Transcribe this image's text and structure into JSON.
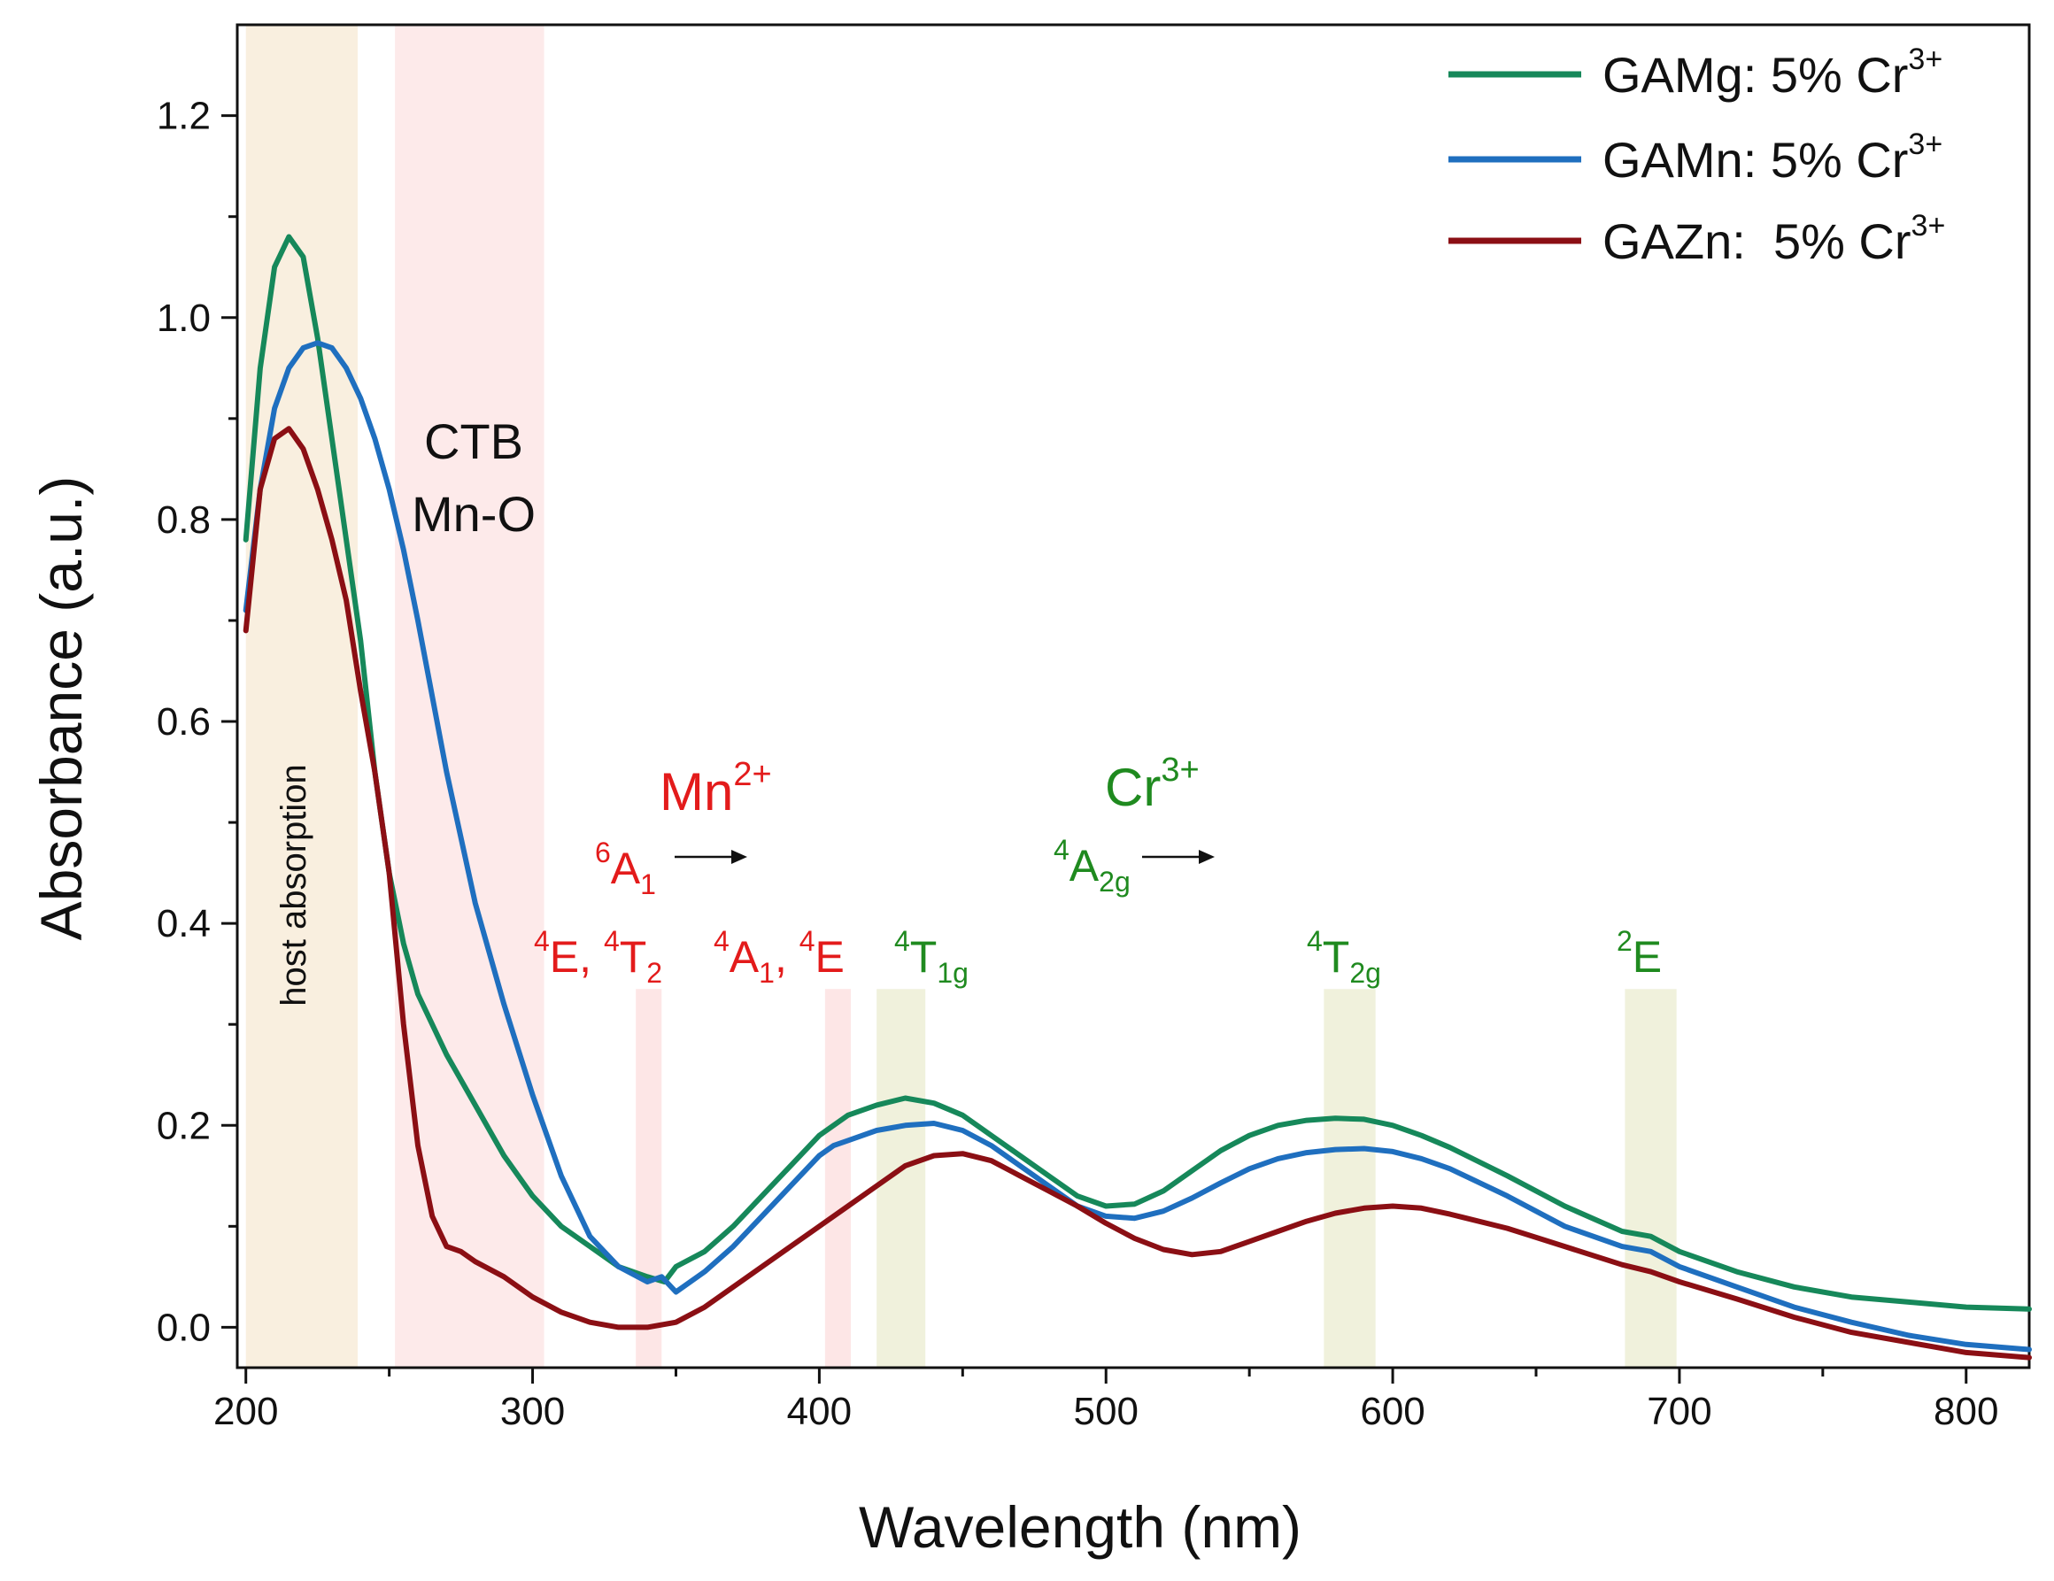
{
  "chart_data": {
    "type": "line",
    "title": "",
    "xlabel": "Wavelength (nm)",
    "ylabel": "Absorbance (a.u.)",
    "xlim": [
      197,
      822
    ],
    "ylim": [
      -0.04,
      1.29
    ],
    "x_ticks": [
      200,
      300,
      400,
      500,
      600,
      700,
      800
    ],
    "x_tick_labels": [
      "200",
      "300",
      "400",
      "500",
      "600",
      "700",
      "800"
    ],
    "y_ticks": [
      0.0,
      0.2,
      0.4,
      0.6,
      0.8,
      1.0,
      1.2
    ],
    "y_tick_labels": [
      "0.0",
      "0.2",
      "0.4",
      "0.6",
      "0.8",
      "1.0",
      "1.2"
    ],
    "legend_position": "top-right",
    "series": [
      {
        "name": "GAMg: 5% Cr",
        "name_sup": "3+",
        "color": "#16885a",
        "x": [
          200,
          205,
          210,
          215,
          220,
          225,
          230,
          235,
          240,
          245,
          250,
          255,
          260,
          270,
          280,
          290,
          300,
          310,
          320,
          330,
          340,
          346,
          350,
          360,
          370,
          380,
          390,
          400,
          410,
          420,
          430,
          440,
          450,
          460,
          470,
          480,
          490,
          500,
          510,
          520,
          530,
          540,
          550,
          560,
          570,
          580,
          590,
          600,
          610,
          620,
          640,
          660,
          680,
          690,
          700,
          720,
          740,
          760,
          780,
          800,
          822
        ],
        "y": [
          0.78,
          0.95,
          1.05,
          1.08,
          1.06,
          0.98,
          0.88,
          0.78,
          0.68,
          0.55,
          0.45,
          0.38,
          0.33,
          0.27,
          0.22,
          0.17,
          0.13,
          0.1,
          0.08,
          0.06,
          0.05,
          0.045,
          0.06,
          0.075,
          0.1,
          0.13,
          0.16,
          0.19,
          0.21,
          0.22,
          0.227,
          0.222,
          0.21,
          0.19,
          0.17,
          0.15,
          0.13,
          0.12,
          0.122,
          0.135,
          0.155,
          0.175,
          0.19,
          0.2,
          0.205,
          0.207,
          0.206,
          0.2,
          0.19,
          0.178,
          0.15,
          0.12,
          0.095,
          0.09,
          0.075,
          0.055,
          0.04,
          0.03,
          0.025,
          0.02,
          0.018
        ]
      },
      {
        "name": "GAMn: 5% Cr",
        "name_sup": "3+",
        "color": "#1f6fbf",
        "x": [
          200,
          205,
          210,
          215,
          220,
          225,
          230,
          235,
          240,
          245,
          250,
          255,
          260,
          270,
          280,
          290,
          300,
          310,
          320,
          330,
          340,
          345,
          350,
          360,
          370,
          380,
          390,
          400,
          405,
          410,
          420,
          430,
          440,
          450,
          460,
          470,
          480,
          490,
          500,
          510,
          520,
          530,
          540,
          550,
          560,
          570,
          580,
          590,
          600,
          610,
          620,
          640,
          660,
          680,
          690,
          700,
          720,
          740,
          760,
          780,
          800,
          822
        ],
        "y": [
          0.71,
          0.83,
          0.91,
          0.95,
          0.97,
          0.975,
          0.97,
          0.95,
          0.92,
          0.88,
          0.83,
          0.77,
          0.7,
          0.55,
          0.42,
          0.32,
          0.23,
          0.15,
          0.09,
          0.06,
          0.045,
          0.05,
          0.035,
          0.055,
          0.08,
          0.11,
          0.14,
          0.17,
          0.18,
          0.185,
          0.195,
          0.2,
          0.202,
          0.195,
          0.18,
          0.16,
          0.14,
          0.12,
          0.11,
          0.108,
          0.115,
          0.128,
          0.143,
          0.157,
          0.167,
          0.173,
          0.176,
          0.177,
          0.174,
          0.167,
          0.157,
          0.13,
          0.1,
          0.08,
          0.075,
          0.06,
          0.04,
          0.02,
          0.005,
          -0.008,
          -0.017,
          -0.022
        ]
      },
      {
        "name": "GAZn:  5% Cr",
        "name_sup": "3+",
        "color": "#8b0f14",
        "x": [
          200,
          205,
          210,
          215,
          220,
          225,
          230,
          235,
          240,
          245,
          250,
          255,
          260,
          265,
          270,
          275,
          280,
          290,
          300,
          310,
          320,
          330,
          340,
          350,
          360,
          370,
          380,
          390,
          400,
          410,
          420,
          430,
          440,
          450,
          460,
          470,
          480,
          490,
          500,
          510,
          520,
          530,
          540,
          550,
          560,
          570,
          580,
          590,
          600,
          610,
          620,
          640,
          660,
          680,
          690,
          700,
          720,
          740,
          760,
          780,
          800,
          822
        ],
        "y": [
          0.69,
          0.83,
          0.88,
          0.89,
          0.87,
          0.83,
          0.78,
          0.72,
          0.63,
          0.55,
          0.45,
          0.3,
          0.18,
          0.11,
          0.08,
          0.075,
          0.065,
          0.05,
          0.03,
          0.015,
          0.005,
          0.0,
          0.0,
          0.005,
          0.02,
          0.04,
          0.06,
          0.08,
          0.1,
          0.12,
          0.14,
          0.16,
          0.17,
          0.172,
          0.165,
          0.15,
          0.135,
          0.12,
          0.103,
          0.088,
          0.077,
          0.072,
          0.075,
          0.085,
          0.095,
          0.105,
          0.113,
          0.118,
          0.12,
          0.118,
          0.112,
          0.098,
          0.08,
          0.062,
          0.055,
          0.045,
          0.028,
          0.01,
          -0.005,
          -0.015,
          -0.025,
          -0.03
        ]
      }
    ],
    "shaded_bands": [
      {
        "x0": 200,
        "x1": 239,
        "y0": -0.04,
        "y1": 1.29,
        "color": "#f7ead4",
        "opacity": 0.75
      },
      {
        "x0": 252,
        "x1": 304,
        "y0": -0.04,
        "y1": 1.29,
        "color": "#fcdcdc",
        "opacity": 0.6
      },
      {
        "x0": 336,
        "x1": 345,
        "y0": -0.04,
        "y1": 0.335,
        "color": "#fcdcdc",
        "opacity": 0.7
      },
      {
        "x0": 402,
        "x1": 411,
        "y0": -0.04,
        "y1": 0.335,
        "color": "#fcdcdc",
        "opacity": 0.7
      },
      {
        "x0": 420,
        "x1": 437,
        "y0": -0.04,
        "y1": 0.335,
        "color": "#eef0d8",
        "opacity": 0.9
      },
      {
        "x0": 576,
        "x1": 594,
        "y0": -0.04,
        "y1": 0.335,
        "color": "#eef0d8",
        "opacity": 0.9
      },
      {
        "x0": 681,
        "x1": 699,
        "y0": -0.04,
        "y1": 0.335,
        "color": "#eef0d8",
        "opacity": 0.9
      }
    ],
    "annotations": {
      "host_absorption": "host absorption",
      "ctb_line1": "CTB",
      "ctb_line2": "Mn-O",
      "mn_label": "Mn",
      "mn_sup": "2+",
      "mn_ground_sup": "6",
      "mn_ground": "A",
      "mn_ground_sub": "1",
      "mn_t1_sup_a": "4",
      "mn_t1_a": "E, ",
      "mn_t1_sup_b": "4",
      "mn_t1_b": "T",
      "mn_t1_sub_b": "2",
      "mn_t2_sup_a": "4",
      "mn_t2_a": "A",
      "mn_t2_sub_a": "1",
      "mn_t2_mid": ", ",
      "mn_t2_sup_b": "4",
      "mn_t2_b": "E",
      "cr_label": "Cr",
      "cr_sup": "3+",
      "cr_ground_sup": "4",
      "cr_ground": "A",
      "cr_ground_sub": "2g",
      "cr_t1_sup": "4",
      "cr_t1": "T",
      "cr_t1_sub": "1g",
      "cr_t2_sup": "4",
      "cr_t2": "T",
      "cr_t2_sub": "2g",
      "cr_t3_sup": "2",
      "cr_t3": "E",
      "mn_color": "#e31b1b",
      "cr_color": "#1f8a1f"
    }
  }
}
